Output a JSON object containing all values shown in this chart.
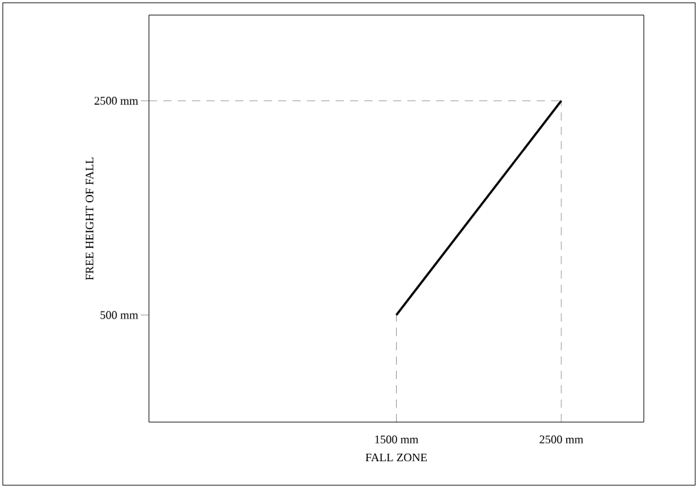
{
  "chart_data": {
    "type": "line",
    "xlabel": "FALL ZONE",
    "ylabel": "FREE HEIGHT OF FALL",
    "x": [
      1500,
      2500
    ],
    "series": [
      {
        "color": "#000000",
        "values": [
          500,
          2500
        ]
      }
    ],
    "xlim": [
      0,
      3000
    ],
    "ylim": [
      -500,
      3300
    ],
    "xticks": [
      {
        "value": 1500,
        "label": "1500 mm"
      },
      {
        "value": 2500,
        "label": "2500 mm"
      }
    ],
    "yticks": [
      {
        "value": 500,
        "label": "500 mm"
      },
      {
        "value": 2500,
        "label": "2500 mm"
      }
    ],
    "ref_lines": [
      {
        "axis": "x",
        "value": 1500,
        "line_style": "dashed"
      },
      {
        "axis": "x",
        "value": 2500,
        "line_style": "dashed"
      },
      {
        "axis": "y",
        "value": 2500,
        "line_style": "dashed"
      }
    ],
    "grid": false,
    "marker": "none",
    "line_style": "solid"
  }
}
